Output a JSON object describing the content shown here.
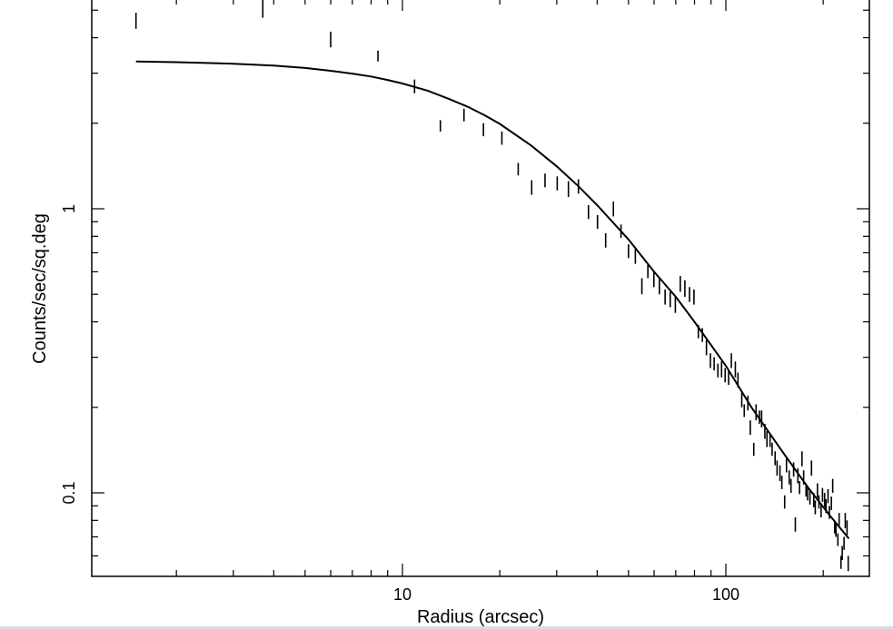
{
  "chart_data": {
    "type": "scatter",
    "title": "",
    "xlabel": "Radius (arcsec)",
    "ylabel": "Counts/sec/sq.deg",
    "xscale": "log",
    "yscale": "log",
    "xlim": [
      1.4,
      250
    ],
    "ylim": [
      0.05,
      5.5
    ],
    "x_tick_labels": [
      {
        "value": 10,
        "label": "10"
      },
      {
        "value": 100,
        "label": "100"
      }
    ],
    "y_tick_labels": [
      {
        "value": 1,
        "label": "1"
      },
      {
        "value": 0.1,
        "label": "0.1"
      }
    ],
    "grid": false,
    "series": [
      {
        "kind": "errorbars",
        "points": [
          [
            1.5,
            4.9,
            4.3
          ],
          [
            3.7,
            5.5,
            4.7
          ],
          [
            6.0,
            4.2,
            3.7
          ],
          [
            8.4,
            3.6,
            3.3
          ],
          [
            10.9,
            2.85,
            2.55
          ],
          [
            13.1,
            2.05,
            1.87
          ],
          [
            15.5,
            2.25,
            2.03
          ],
          [
            17.8,
            2.0,
            1.8
          ],
          [
            20.3,
            1.87,
            1.68
          ],
          [
            22.8,
            1.45,
            1.31
          ],
          [
            25.1,
            1.26,
            1.12
          ],
          [
            27.6,
            1.33,
            1.19
          ],
          [
            30.1,
            1.3,
            1.16
          ],
          [
            32.6,
            1.25,
            1.1
          ],
          [
            35.0,
            1.27,
            1.13
          ],
          [
            37.6,
            1.03,
            0.92
          ],
          [
            40.1,
            0.95,
            0.85
          ],
          [
            42.5,
            0.82,
            0.73
          ],
          [
            44.9,
            1.06,
            0.94
          ],
          [
            47.4,
            0.88,
            0.79
          ],
          [
            50.0,
            0.75,
            0.67
          ],
          [
            52.5,
            0.72,
            0.64
          ],
          [
            55.0,
            0.57,
            0.5
          ],
          [
            57.4,
            0.64,
            0.57
          ],
          [
            59.9,
            0.6,
            0.53
          ],
          [
            62.3,
            0.57,
            0.5
          ],
          [
            64.9,
            0.52,
            0.46
          ],
          [
            67.3,
            0.51,
            0.45
          ],
          [
            69.8,
            0.49,
            0.43
          ],
          [
            72.3,
            0.58,
            0.51
          ],
          [
            74.7,
            0.56,
            0.49
          ],
          [
            77.2,
            0.53,
            0.47
          ],
          [
            79.7,
            0.52,
            0.46
          ],
          [
            82.2,
            0.39,
            0.35
          ],
          [
            84.6,
            0.38,
            0.34
          ],
          [
            87.1,
            0.345,
            0.305
          ],
          [
            89.6,
            0.31,
            0.275
          ],
          [
            92.0,
            0.3,
            0.27
          ],
          [
            94.5,
            0.285,
            0.255
          ],
          [
            97.0,
            0.29,
            0.255
          ],
          [
            99.5,
            0.275,
            0.245
          ],
          [
            102,
            0.27,
            0.24
          ],
          [
            104,
            0.31,
            0.275
          ],
          [
            107,
            0.29,
            0.255
          ],
          [
            109,
            0.265,
            0.235
          ],
          [
            112,
            0.225,
            0.2
          ],
          [
            114,
            0.205,
            0.185
          ],
          [
            117,
            0.22,
            0.195
          ],
          [
            119,
            0.18,
            0.16
          ],
          [
            122,
            0.15,
            0.135
          ],
          [
            124,
            0.205,
            0.18
          ],
          [
            127,
            0.195,
            0.175
          ],
          [
            129,
            0.195,
            0.17
          ],
          [
            132,
            0.175,
            0.155
          ],
          [
            134,
            0.165,
            0.145
          ],
          [
            137,
            0.16,
            0.145
          ],
          [
            139,
            0.15,
            0.135
          ],
          [
            142,
            0.14,
            0.125
          ],
          [
            144,
            0.13,
            0.115
          ],
          [
            147,
            0.125,
            0.11
          ],
          [
            149,
            0.115,
            0.103
          ],
          [
            152,
            0.098,
            0.088
          ],
          [
            154,
            0.132,
            0.118
          ],
          [
            157,
            0.12,
            0.107
          ],
          [
            159,
            0.112,
            0.1
          ],
          [
            162,
            0.128,
            0.114
          ],
          [
            164,
            0.082,
            0.073
          ],
          [
            167,
            0.122,
            0.108
          ],
          [
            169,
            0.11,
            0.099
          ],
          [
            172,
            0.14,
            0.124
          ],
          [
            174,
            0.12,
            0.107
          ],
          [
            177,
            0.108,
            0.097
          ],
          [
            179,
            0.105,
            0.094
          ],
          [
            182,
            0.102,
            0.091
          ],
          [
            184,
            0.13,
            0.115
          ],
          [
            187,
            0.1,
            0.089
          ],
          [
            189,
            0.094,
            0.084
          ],
          [
            192,
            0.108,
            0.096
          ],
          [
            194,
            0.098,
            0.088
          ],
          [
            197,
            0.092,
            0.082
          ],
          [
            199,
            0.104,
            0.093
          ],
          [
            202,
            0.1,
            0.089
          ],
          [
            204,
            0.095,
            0.085
          ],
          [
            207,
            0.103,
            0.092
          ],
          [
            209,
            0.09,
            0.081
          ],
          [
            212,
            0.097,
            0.087
          ],
          [
            214,
            0.112,
            0.1
          ],
          [
            217,
            0.08,
            0.072
          ],
          [
            219,
            0.078,
            0.07
          ],
          [
            222,
            0.072,
            0.065
          ],
          [
            224,
            0.085,
            0.076
          ],
          [
            227,
            0.06,
            0.054
          ],
          [
            229,
            0.065,
            0.058
          ],
          [
            232,
            0.07,
            0.063
          ],
          [
            234,
            0.085,
            0.075
          ],
          [
            237,
            0.08,
            0.071
          ],
          [
            239,
            0.06,
            0.053
          ]
        ]
      },
      {
        "kind": "line",
        "x": [
          1.5,
          2,
          3,
          4,
          5,
          6,
          7,
          8,
          9,
          10,
          12,
          14,
          16,
          18,
          20,
          25,
          30,
          35,
          40,
          50,
          60,
          70,
          80,
          100,
          120,
          150,
          180,
          210,
          240
        ],
        "values": [
          3.3,
          3.28,
          3.24,
          3.19,
          3.13,
          3.06,
          2.99,
          2.92,
          2.84,
          2.76,
          2.6,
          2.43,
          2.28,
          2.13,
          1.99,
          1.67,
          1.41,
          1.2,
          1.03,
          0.78,
          0.6,
          0.49,
          0.4,
          0.28,
          0.2,
          0.139,
          0.104,
          0.083,
          0.069
        ]
      }
    ]
  }
}
